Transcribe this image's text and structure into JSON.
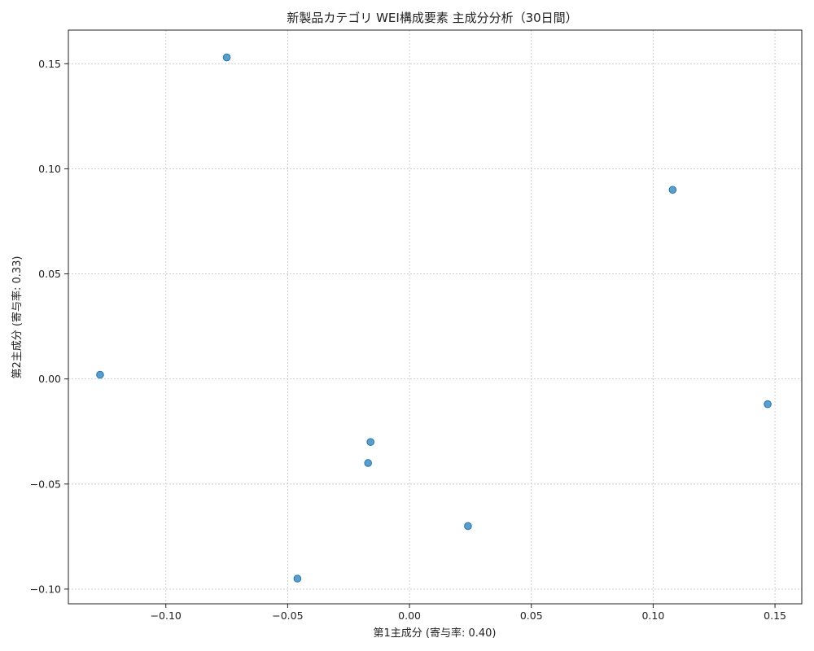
{
  "chart_data": {
    "type": "scatter",
    "title": "新製品カテゴリ WEI構成要素 主成分分析（30日間）",
    "xlabel": "第1主成分 (寄与率: 0.40)",
    "ylabel": "第2主成分 (寄与率: 0.33)",
    "xlim": [
      -0.14,
      0.161
    ],
    "ylim": [
      -0.107,
      0.166
    ],
    "xticks": [
      -0.1,
      -0.05,
      0.0,
      0.05,
      0.1,
      0.15
    ],
    "xtick_labels": [
      "−0.10",
      "−0.05",
      "0.00",
      "0.05",
      "0.10",
      "0.15"
    ],
    "yticks": [
      -0.1,
      -0.05,
      0.0,
      0.05,
      0.1,
      0.15
    ],
    "ytick_labels": [
      "−0.10",
      "−0.05",
      "0.00",
      "0.05",
      "0.10",
      "0.15"
    ],
    "grid": true,
    "color": "#1f77b4",
    "points": [
      {
        "x": -0.075,
        "y": 0.153
      },
      {
        "x": 0.108,
        "y": 0.09
      },
      {
        "x": -0.127,
        "y": 0.002
      },
      {
        "x": 0.147,
        "y": -0.012
      },
      {
        "x": -0.016,
        "y": -0.03
      },
      {
        "x": -0.017,
        "y": -0.04
      },
      {
        "x": 0.024,
        "y": -0.07
      },
      {
        "x": -0.046,
        "y": -0.095
      }
    ]
  }
}
